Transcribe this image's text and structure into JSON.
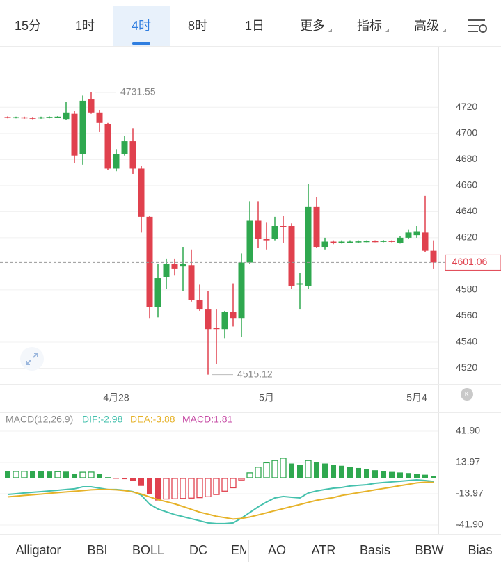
{
  "tabs": [
    "15分",
    "1时",
    "4时",
    "8时",
    "1日",
    "更多",
    "指标",
    "高级"
  ],
  "active_tab": 2,
  "indicators": [
    "Alligator",
    "BBI",
    "BOLL",
    "DC",
    "EMA",
    "AO",
    "ATR",
    "Basis",
    "BBW",
    "Bias"
  ],
  "chart_data": [
    {
      "type": "candlestick",
      "categories": [
        null,
        null,
        null,
        null,
        null,
        null,
        null,
        null,
        null,
        null,
        null,
        null,
        null,
        "4月28",
        null,
        null,
        null,
        null,
        null,
        null,
        null,
        null,
        null,
        null,
        null,
        null,
        null,
        null,
        null,
        null,
        null,
        "5月",
        null,
        null,
        null,
        null,
        null,
        null,
        null,
        null,
        null,
        null,
        null,
        null,
        null,
        null,
        null,
        null,
        null,
        "5月4",
        null,
        null
      ],
      "open": [
        4712.5,
        4711.8,
        4712.3,
        4712,
        4711.5,
        4711.8,
        4712,
        4711,
        4715,
        4684,
        4726,
        4716,
        4707,
        4673,
        4684,
        4694,
        4673,
        4636,
        4567,
        4590,
        4600,
        4598,
        4599,
        4572,
        4565,
        4551,
        4550,
        4563,
        4558,
        4601,
        4633,
        4619,
        4619,
        4629,
        4629,
        4584,
        4583,
        4644,
        4613,
        4617,
        4616,
        4616.5,
        4616.5,
        4616.8,
        4617.4,
        4616.8,
        4617.6,
        4616,
        4620,
        4622,
        4624,
        4610
      ],
      "high": [
        4713,
        4712.8,
        4712.8,
        4712.6,
        4712.8,
        4713,
        4713.2,
        4724,
        4717,
        4729,
        4731.55,
        4718,
        4708,
        4688,
        4698,
        4704,
        4675,
        4637,
        4600,
        4604,
        4604,
        4613,
        4611,
        4584,
        4579,
        4565,
        4564,
        4585,
        4608,
        4648,
        4648,
        4632,
        4636,
        4637,
        4631,
        4593,
        4661,
        4651,
        4620,
        4618,
        4618,
        4618,
        4618,
        4618,
        4618,
        4618.2,
        4618,
        4621,
        4626,
        4629,
        4652,
        4618
      ],
      "low": [
        4711.5,
        4711.5,
        4711.2,
        4710.8,
        4711.2,
        4711.5,
        4711.8,
        4710.5,
        4677,
        4676,
        4715,
        4701,
        4672,
        4671,
        4683,
        4669,
        4624,
        4558,
        4559,
        4581,
        4591,
        4579,
        4571,
        4564,
        4515.12,
        4523,
        4543,
        4552,
        4544,
        4600,
        4612,
        4611,
        4618,
        4616,
        4581,
        4565,
        4581,
        4612,
        4611,
        4615,
        4615.5,
        4616,
        4616,
        4616.5,
        4616.5,
        4616.5,
        4616.5,
        4615.5,
        4619,
        4620,
        4609,
        4596
      ],
      "close": [
        4712,
        4712.4,
        4711.6,
        4711.2,
        4712.3,
        4712.6,
        4712.8,
        4716,
        4683,
        4725,
        4716,
        4708,
        4673,
        4684,
        4694,
        4673,
        4636,
        4567,
        4589,
        4600,
        4596,
        4600,
        4572,
        4565,
        4550,
        4550,
        4563,
        4558,
        4601,
        4633,
        4619,
        4618,
        4629,
        4628,
        4583,
        4585,
        4644,
        4613,
        4617,
        4616,
        4617,
        4617,
        4617.2,
        4617.4,
        4616.8,
        4617.6,
        4616.9,
        4620,
        4624,
        4625,
        4610,
        4601.06
      ],
      "up_color": "#2fa84f",
      "down_color": "#e0414e",
      "ylim": [
        4508,
        4766
      ],
      "yticks": [
        4520,
        4540,
        4560,
        4580,
        4600,
        4620,
        4640,
        4660,
        4680,
        4700,
        4720
      ],
      "grid": true,
      "last_price_line": true
    },
    {
      "type": "macd",
      "legend_title": "MACD(12,26,9)",
      "series": [
        {
          "label": "MACD:1.81",
          "color": "#c64aa4",
          "up_color": "#2fa84f",
          "down_color": "#e0414e",
          "kind": "bar",
          "values": [
            6.0,
            6.2,
            6.3,
            6.1,
            5.9,
            5.8,
            6.0,
            5.7,
            4.0,
            5.5,
            5.6,
            3.5,
            0.8,
            -0.6,
            -1.0,
            -2.5,
            -7,
            -14,
            -20,
            -19,
            -18.8,
            -18.5,
            -18.2,
            -17.8,
            -17,
            -15,
            -12,
            -9,
            -2,
            5,
            10,
            14,
            16,
            18,
            13,
            12,
            16,
            14,
            13,
            12,
            11,
            10,
            9,
            8,
            7,
            6,
            5.5,
            5,
            4.5,
            4,
            3,
            1.81
          ]
        },
        {
          "label": "DIF:-2.98",
          "color": "#45c1ad",
          "kind": "line",
          "values": [
            -14.6,
            -14.0,
            -13.3,
            -12.7,
            -12.1,
            -11.5,
            -10.9,
            -10.2,
            -9.6,
            -7.8,
            -7.8,
            -9.0,
            -10.2,
            -10.2,
            -10.9,
            -12.1,
            -15.2,
            -23.3,
            -27.6,
            -30.1,
            -32.6,
            -34.4,
            -36.3,
            -38.1,
            -40.0,
            -40.6,
            -40.6,
            -40.0,
            -35.7,
            -30.7,
            -25.7,
            -21.4,
            -17.7,
            -16.4,
            -17.1,
            -17.7,
            -13.3,
            -11.5,
            -10.2,
            -9.0,
            -8.4,
            -7.1,
            -6.5,
            -5.9,
            -4.7,
            -4.0,
            -3.4,
            -2.8,
            -2.2,
            -1.6,
            -2.2,
            -2.98
          ]
        },
        {
          "label": "DEA:-3.88",
          "color": "#e6b228",
          "kind": "line",
          "values": [
            -16.8,
            -16.2,
            -15.5,
            -14.9,
            -14.3,
            -13.6,
            -13.0,
            -12.4,
            -11.8,
            -11.2,
            -10.5,
            -10.2,
            -10.2,
            -10.5,
            -11.2,
            -12.4,
            -14.3,
            -16.8,
            -19.2,
            -21.1,
            -23.0,
            -25.4,
            -27.9,
            -30.4,
            -32.2,
            -34.1,
            -35.3,
            -36.6,
            -36.0,
            -34.7,
            -32.9,
            -31.0,
            -29.1,
            -27.3,
            -25.4,
            -23.6,
            -21.7,
            -19.8,
            -18.6,
            -17.4,
            -15.5,
            -14.3,
            -13.0,
            -11.8,
            -10.5,
            -9.3,
            -8.1,
            -6.8,
            -5.6,
            -4.3,
            -3.7,
            -3.88
          ]
        }
      ],
      "ylim": [
        -50,
        57.4
      ],
      "yticks": [
        {
          "value": 41.9,
          "label": "41.90"
        },
        13.97,
        -13.97,
        {
          "value": -41.9,
          "label": "-41.90"
        }
      ],
      "grid": true
    }
  ]
}
